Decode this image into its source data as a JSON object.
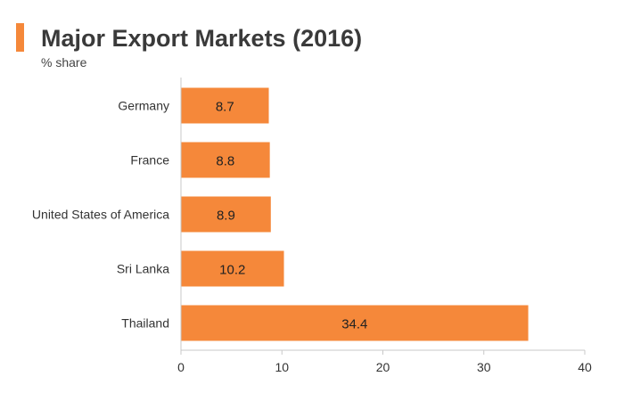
{
  "colors": {
    "accent": "#f5883a",
    "bar": "#f5883a",
    "axis": "#c8c8c8"
  },
  "chart_data": {
    "type": "bar",
    "orientation": "horizontal",
    "title": "Major Export Markets (2016)",
    "subtitle": "% share",
    "categories": [
      "Germany",
      "France",
      "United States of America",
      "Sri Lanka",
      "Thailand"
    ],
    "values": [
      8.7,
      8.8,
      8.9,
      10.2,
      34.4
    ],
    "value_labels": [
      "8.7",
      "8.8",
      "8.9",
      "10.2",
      "34.4"
    ],
    "xlim": [
      0,
      40
    ],
    "xticks": [
      0,
      10,
      20,
      30,
      40
    ],
    "xtick_labels": [
      "0",
      "10",
      "20",
      "30",
      "40"
    ],
    "xlabel": "",
    "ylabel": "",
    "grid": false,
    "legend": "none"
  }
}
